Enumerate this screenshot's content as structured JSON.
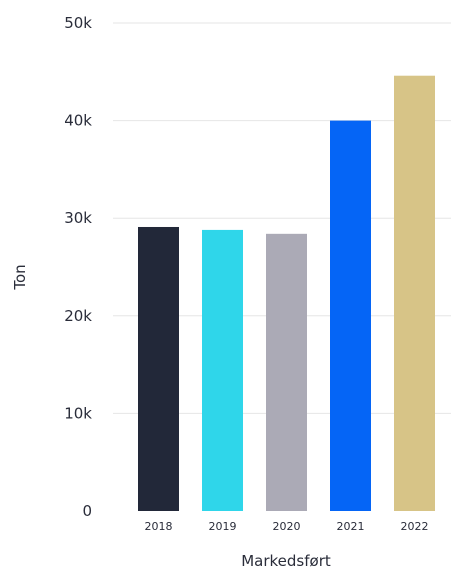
{
  "chart_data": {
    "type": "bar",
    "categories": [
      "2018",
      "2019",
      "2020",
      "2021",
      "2022"
    ],
    "values": [
      29100,
      28800,
      28400,
      40000,
      44600
    ],
    "ylabel": "Ton",
    "xlabel": "Markedsført",
    "ylim": [
      0,
      50000
    ],
    "yticks": [
      0,
      10000,
      20000,
      30000,
      40000,
      50000
    ],
    "ytick_labels": [
      "0",
      "10k",
      "20k",
      "30k",
      "40k",
      "50k"
    ],
    "grid": true,
    "legend": "none",
    "bar_colors": [
      "#222839",
      "#2fd6ea",
      "#abaab6",
      "#0565f6",
      "#d7c487"
    ]
  }
}
